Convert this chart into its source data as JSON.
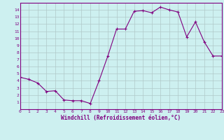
{
  "x": [
    0,
    1,
    2,
    3,
    4,
    5,
    6,
    7,
    8,
    9,
    10,
    11,
    12,
    13,
    14,
    15,
    16,
    17,
    18,
    19,
    20,
    21,
    22,
    23
  ],
  "y": [
    4.5,
    4.2,
    3.7,
    2.5,
    2.6,
    1.3,
    1.2,
    1.2,
    0.8,
    4.0,
    7.5,
    11.3,
    11.3,
    13.8,
    13.9,
    13.6,
    14.4,
    14.0,
    13.7,
    10.2,
    12.3,
    9.5,
    7.5,
    7.5
  ],
  "xlabel": "Windchill (Refroidissement éolien,°C)",
  "xlim": [
    0,
    23
  ],
  "ylim": [
    0,
    15
  ],
  "line_color": "#800080",
  "marker_color": "#800080",
  "bg_color": "#cdf0f0",
  "grid_color": "#b0c8c8",
  "tick_color": "#800080",
  "label_color": "#800080",
  "xticks": [
    0,
    1,
    2,
    3,
    4,
    5,
    6,
    7,
    8,
    9,
    10,
    11,
    12,
    13,
    14,
    15,
    16,
    17,
    18,
    19,
    20,
    21,
    22,
    23
  ],
  "yticks": [
    1,
    2,
    3,
    4,
    5,
    6,
    7,
    8,
    9,
    10,
    11,
    12,
    13,
    14
  ]
}
